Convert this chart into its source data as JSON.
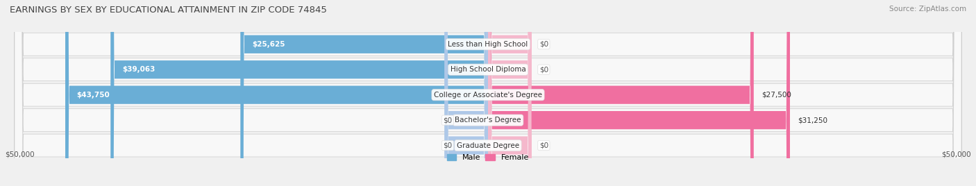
{
  "title": "EARNINGS BY SEX BY EDUCATIONAL ATTAINMENT IN ZIP CODE 74845",
  "source": "Source: ZipAtlas.com",
  "categories": [
    "Less than High School",
    "High School Diploma",
    "College or Associate's Degree",
    "Bachelor's Degree",
    "Graduate Degree"
  ],
  "male_values": [
    25625,
    39063,
    43750,
    0,
    0
  ],
  "female_values": [
    0,
    0,
    27500,
    31250,
    0
  ],
  "male_color": "#6aaed6",
  "female_color": "#f06fa0",
  "male_color_light": "#aec8e8",
  "female_color_light": "#f5b8cc",
  "max_value": 50000,
  "title_fontsize": 9.5,
  "source_fontsize": 7.5,
  "bar_label_fontsize": 7.5,
  "axis_label_left": "$50,000",
  "axis_label_right": "$50,000",
  "bg_color": "#f0f0f0",
  "row_colors": [
    "#ffffff",
    "#ebebeb",
    "#ffffff",
    "#ebebeb",
    "#ffffff"
  ]
}
